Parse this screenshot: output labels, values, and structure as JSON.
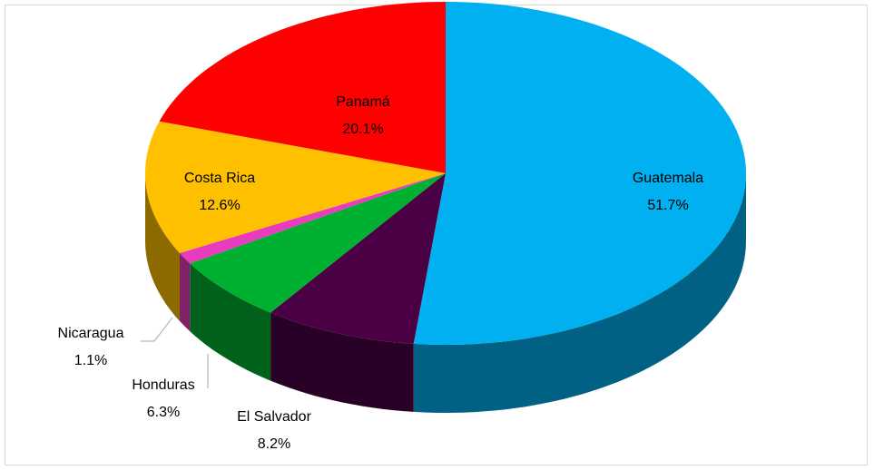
{
  "chart_data": {
    "type": "pie3d",
    "categories": [
      "Guatemala",
      "El Salvador",
      "Honduras",
      "Nicaragua",
      "Costa Rica",
      "Panamá"
    ],
    "values": [
      51.7,
      8.2,
      6.3,
      1.1,
      12.6,
      20.1
    ],
    "value_labels": [
      "51.7%",
      "8.2%",
      "6.3%",
      "1.1%",
      "12.6%",
      "20.1%"
    ],
    "colors": [
      "#00b0f0",
      "#4b0045",
      "#00b030",
      "#e83cbf",
      "#ffc000",
      "#ff0000"
    ]
  }
}
